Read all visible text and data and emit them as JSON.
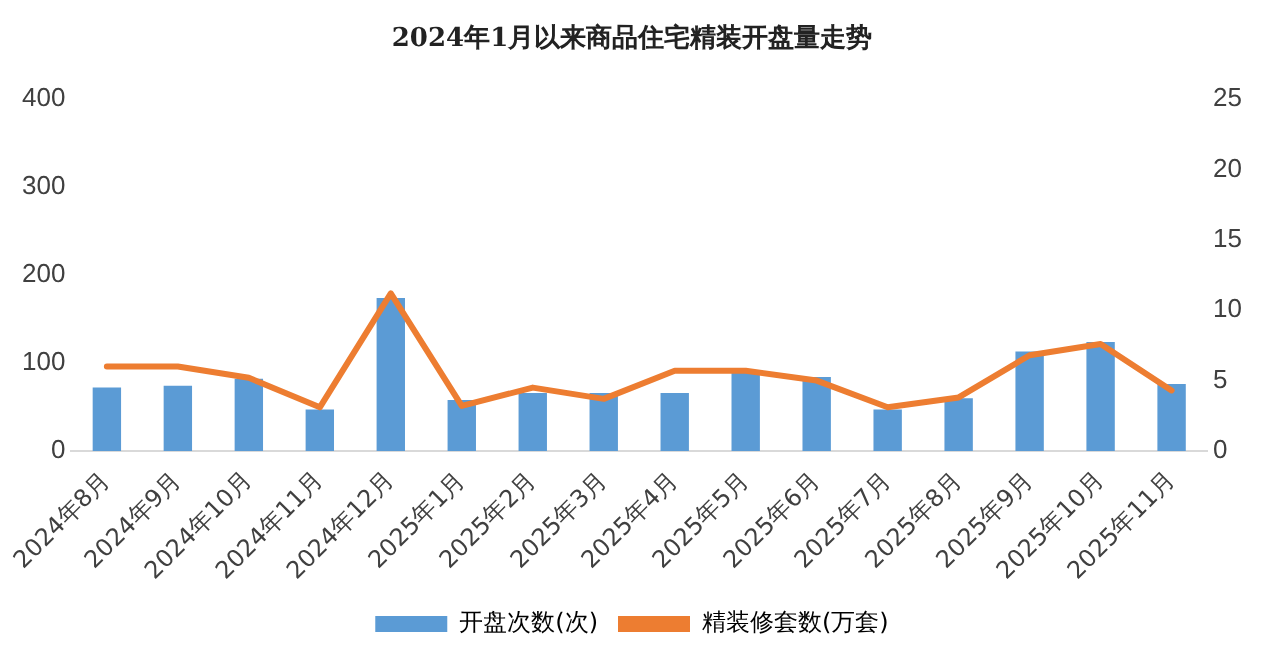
{
  "chart_data": {
    "type": "bar",
    "title": "2024年1月以来商品住宅精装开盘量走势",
    "categories": [
      "2024年8月",
      "2024年9月",
      "2024年10月",
      "2024年11月",
      "2024年12月",
      "2025年1月",
      "2025年2月",
      "2025年3月",
      "2025年4月",
      "2025年5月",
      "2025年6月",
      "2025年7月",
      "2025年8月",
      "2025年9月",
      "2025年10月",
      "2025年11月"
    ],
    "series": [
      {
        "name": "开盘次数(次)",
        "color": "#5b9bd5",
        "values": [
          72,
          74,
          82,
          47,
          174,
          58,
          66,
          66,
          66,
          89,
          84,
          47,
          60,
          113,
          124,
          76
        ]
      },
      {
        "name": "精装修套数(万套)",
        "type": "line",
        "axis": "y2",
        "color": "#ed7d31",
        "values": [
          6.0,
          6.0,
          5.2,
          3.1,
          11.2,
          3.2,
          4.5,
          3.7,
          5.7,
          5.7,
          5.0,
          3.1,
          3.8,
          6.8,
          7.6,
          4.3
        ]
      }
    ],
    "ylim": [
      0,
      400
    ],
    "yticks": [
      0,
      100,
      200,
      300,
      400
    ],
    "y2lim": [
      0,
      25
    ],
    "y2ticks": [
      0,
      5,
      10,
      15,
      20,
      25
    ],
    "grid": false,
    "legend": "bottom",
    "marker": "none",
    "line_style": "solid"
  }
}
